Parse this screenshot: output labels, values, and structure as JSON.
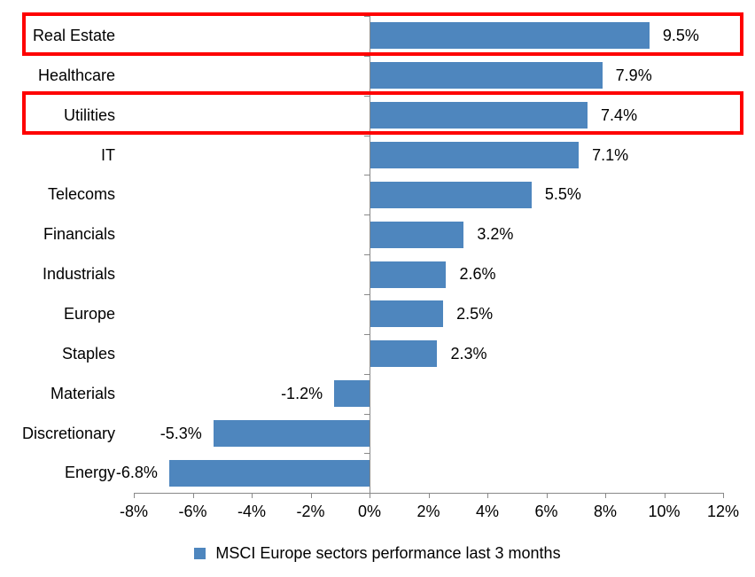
{
  "chart_data": {
    "type": "bar",
    "orientation": "horizontal",
    "title": "",
    "legend": {
      "label": "MSCI Europe sectors performance last 3 months",
      "position": "bottom"
    },
    "categories": [
      "Real Estate",
      "Healthcare",
      "Utilities",
      "IT",
      "Telecoms",
      "Financials",
      "Industrials",
      "Europe",
      "Staples",
      "Materials",
      "Discretionary",
      "Energy"
    ],
    "values": [
      9.5,
      7.9,
      7.4,
      7.1,
      5.5,
      3.2,
      2.6,
      2.5,
      2.3,
      -1.2,
      -5.3,
      -6.8
    ],
    "value_labels": [
      "9.5%",
      "7.9%",
      "7.4%",
      "7.1%",
      "5.5%",
      "3.2%",
      "2.6%",
      "2.5%",
      "2.3%",
      "-1.2%",
      "-5.3%",
      "-6.8%"
    ],
    "highlighted_categories": [
      "Real Estate",
      "Utilities"
    ],
    "x_axis": {
      "min": -8,
      "max": 12,
      "tick_step": 2,
      "tick_values": [
        -8,
        -6,
        -4,
        -2,
        0,
        2,
        4,
        6,
        8,
        10,
        12
      ],
      "tick_labels": [
        "-8%",
        "-6%",
        "-4%",
        "-2%",
        "0%",
        "2%",
        "4%",
        "6%",
        "8%",
        "10%",
        "12%"
      ],
      "grid": false
    },
    "colors": {
      "bar": "#4E86BE",
      "axis": "#898989",
      "highlight_box": "#FE0000",
      "text": "#000000",
      "background": "#FFFFFF"
    }
  }
}
